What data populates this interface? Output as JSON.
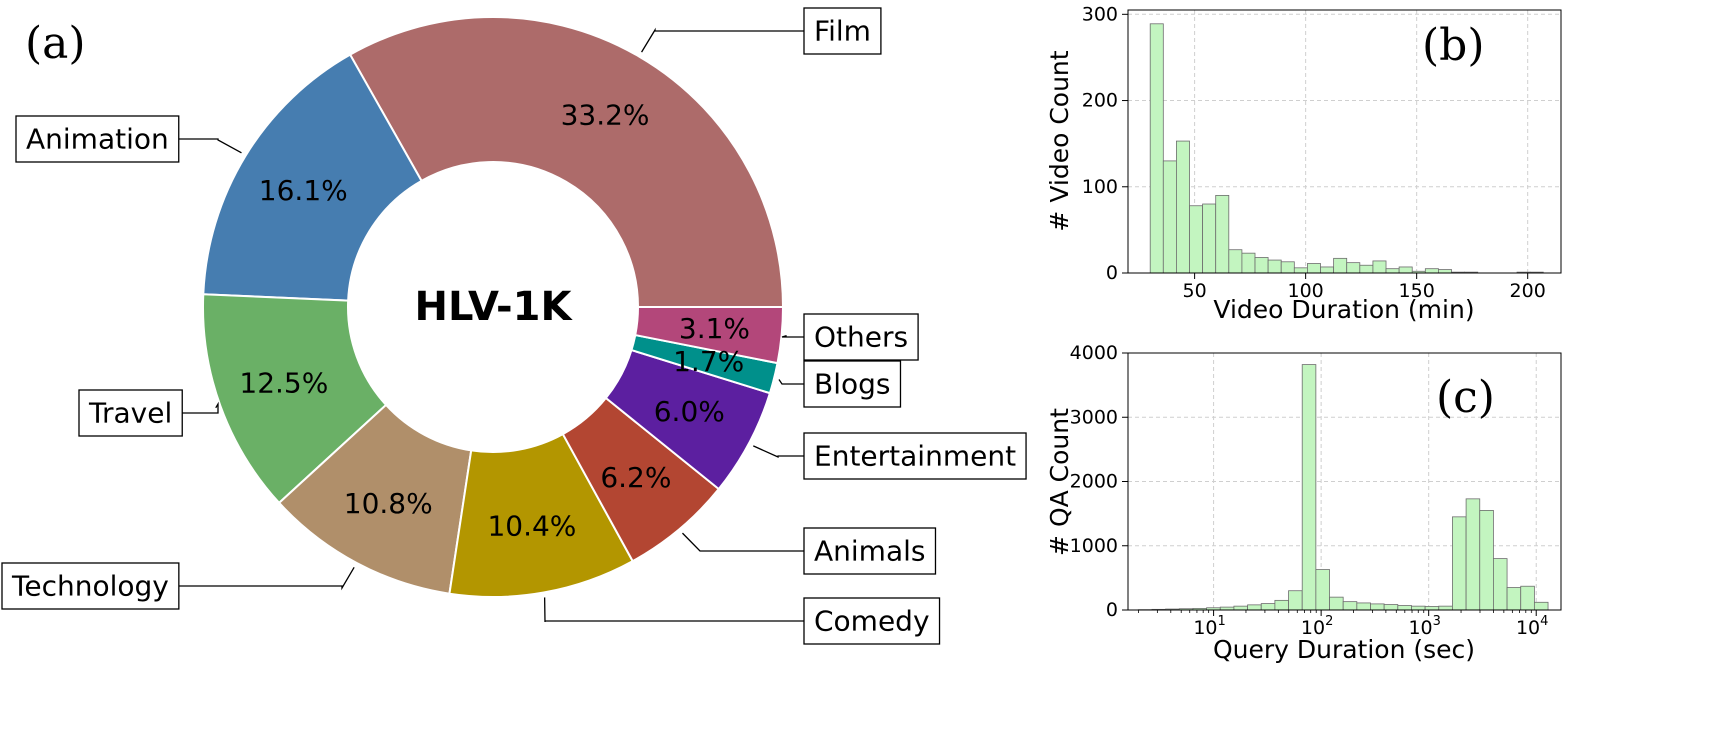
{
  "chart_data": [
    {
      "panel_label": "(a)",
      "type": "pie",
      "donut": true,
      "center_label": "HLV-1K",
      "slices": [
        {
          "label": "Film",
          "value": 33.2,
          "pct_label": "33.2%",
          "color": "#ad6b6a"
        },
        {
          "label": "Animation",
          "value": 16.1,
          "pct_label": "16.1%",
          "color": "#467db0"
        },
        {
          "label": "Travel",
          "value": 12.5,
          "pct_label": "12.5%",
          "color": "#6ab066"
        },
        {
          "label": "Technology",
          "value": 10.8,
          "pct_label": "10.8%",
          "color": "#b08f6a"
        },
        {
          "label": "Comedy",
          "value": 10.4,
          "pct_label": "10.4%",
          "color": "#b39600"
        },
        {
          "label": "Animals",
          "value": 6.2,
          "pct_label": "6.2%",
          "color": "#b34632"
        },
        {
          "label": "Entertainment",
          "value": 6.0,
          "pct_label": "6.0%",
          "color": "#5c1fa0"
        },
        {
          "label": "Blogs",
          "value": 1.7,
          "pct_label": "1.7%",
          "color": "#00908b"
        },
        {
          "label": "Others",
          "value": 3.1,
          "pct_label": "3.1%",
          "color": "#b3477a"
        }
      ]
    },
    {
      "panel_label": "(b)",
      "type": "bar",
      "subtype": "histogram",
      "xlabel": "Video Duration (min)",
      "ylabel": "# Video Count",
      "xlim": [
        20,
        215
      ],
      "ylim": [
        0,
        305
      ],
      "xticks": [
        50,
        100,
        150,
        200
      ],
      "yticks": [
        0,
        100,
        200,
        300
      ],
      "bin_start": 30,
      "bin_width": 5.9,
      "values": [
        289,
        130,
        153,
        78,
        80,
        90,
        27,
        23,
        18,
        15,
        13,
        6,
        11,
        7,
        17,
        12,
        9,
        14,
        5,
        7,
        2,
        5,
        4,
        1,
        1,
        0,
        0,
        0,
        1,
        1
      ],
      "grid": true,
      "bar_color": "#c3f5c0"
    },
    {
      "panel_label": "(c)",
      "type": "bar",
      "subtype": "histogram",
      "xscale": "log",
      "xlabel": "Query Duration (sec)",
      "ylabel": "# QA Count",
      "xlim": [
        1.6,
        17000
      ],
      "ylim": [
        0,
        4000
      ],
      "xticks": [
        10,
        100,
        1000,
        10000
      ],
      "xtick_labels": [
        {
          "base": "10",
          "exp": "1"
        },
        {
          "base": "10",
          "exp": "2"
        },
        {
          "base": "10",
          "exp": "3"
        },
        {
          "base": "10",
          "exp": "4"
        }
      ],
      "yticks": [
        0,
        1000,
        2000,
        3000,
        4000
      ],
      "log_bin_start": 0.3,
      "log_bin_width": 0.127,
      "values": [
        5,
        10,
        15,
        20,
        25,
        35,
        45,
        60,
        80,
        100,
        150,
        300,
        3820,
        630,
        200,
        130,
        110,
        95,
        85,
        70,
        60,
        55,
        60,
        1450,
        1730,
        1550,
        800,
        350,
        370,
        120
      ],
      "grid": true,
      "bar_color": "#c3f5c0"
    }
  ]
}
